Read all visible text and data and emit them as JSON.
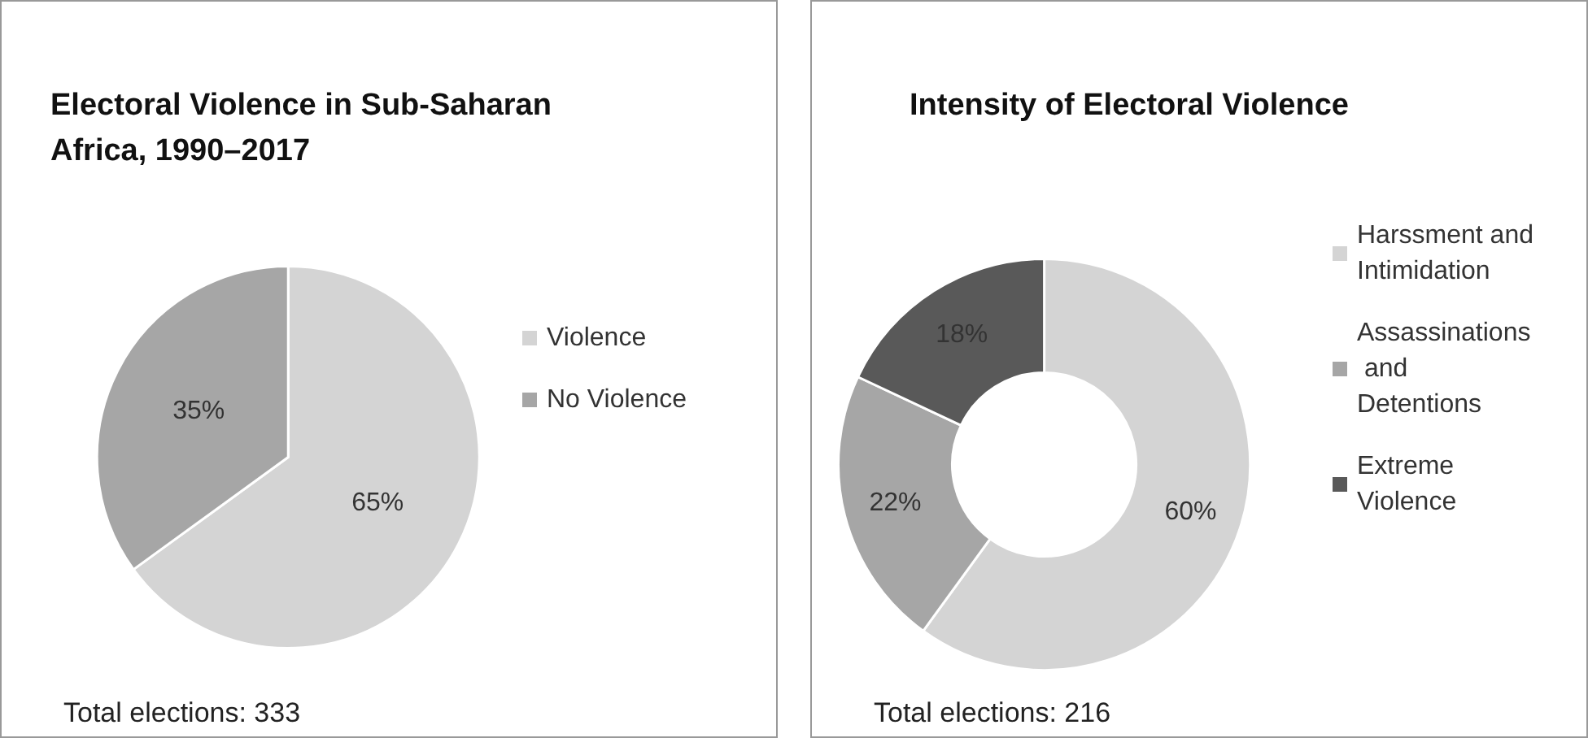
{
  "chart_data": [
    {
      "type": "pie",
      "title": "Electoral Violence in Sub-Saharan Africa, 1990–2017",
      "categories": [
        "Violence",
        "No Violence"
      ],
      "values": [
        65,
        35
      ],
      "colors": [
        "#d4d4d4",
        "#a6a6a6"
      ],
      "value_labels": [
        "65%",
        "35%"
      ],
      "legend": "right",
      "annotations": [
        "Total elections: 333"
      ]
    },
    {
      "type": "donut",
      "title": "Intensity of Electoral Violence",
      "categories": [
        "Harssment and Intimidation",
        "Assassinations and Detentions",
        "Extreme Violence"
      ],
      "values": [
        60,
        22,
        18
      ],
      "colors": [
        "#d4d4d4",
        "#a6a6a6",
        "#595959"
      ],
      "value_labels": [
        "60%",
        "22%",
        "18%"
      ],
      "legend": "right",
      "annotations": [
        "Total elections: 216"
      ]
    }
  ]
}
